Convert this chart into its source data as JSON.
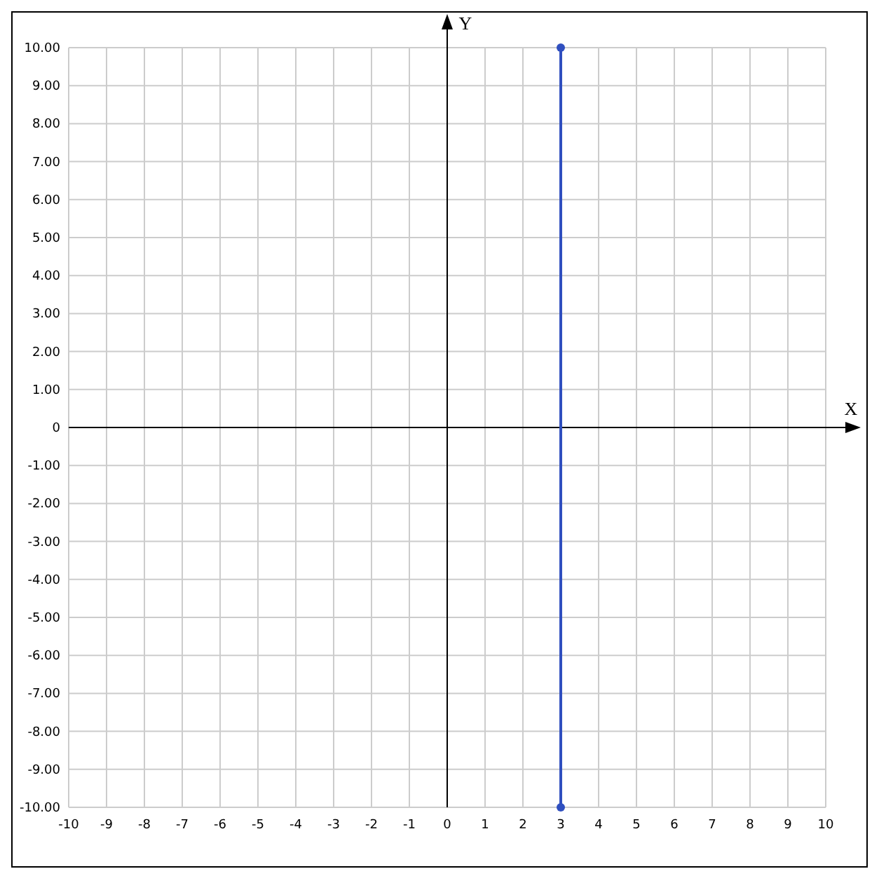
{
  "chart_data": {
    "type": "line",
    "xlabel": "X",
    "ylabel": "Y",
    "xlim": [
      -10,
      10
    ],
    "ylim": [
      -10,
      10
    ],
    "xticks": [
      -10,
      -9,
      -8,
      -7,
      -6,
      -5,
      -4,
      -3,
      -2,
      -1,
      0,
      1,
      2,
      3,
      4,
      5,
      6,
      7,
      8,
      9,
      10
    ],
    "yticks": [
      {
        "value": 10,
        "label": "10.00"
      },
      {
        "value": 9,
        "label": "9.00"
      },
      {
        "value": 8,
        "label": "8.00"
      },
      {
        "value": 7,
        "label": "7.00"
      },
      {
        "value": 6,
        "label": "6.00"
      },
      {
        "value": 5,
        "label": "5.00"
      },
      {
        "value": 4,
        "label": "4.00"
      },
      {
        "value": 3,
        "label": "3.00"
      },
      {
        "value": 2,
        "label": "2.00"
      },
      {
        "value": 1,
        "label": "1.00"
      },
      0,
      {
        "value": -1,
        "label": "-1.00"
      },
      {
        "value": -2,
        "label": "-2.00"
      },
      {
        "value": -3,
        "label": "-3.00"
      },
      {
        "value": -4,
        "label": "-4.00"
      },
      {
        "value": -5,
        "label": "-5.00"
      },
      {
        "value": -6,
        "label": "-6.00"
      },
      {
        "value": -7,
        "label": "-7.00"
      },
      {
        "value": -8,
        "label": "-8.00"
      },
      {
        "value": -9,
        "label": "-9.00"
      },
      {
        "value": -10,
        "label": "-10.00"
      }
    ],
    "grid": true,
    "marker": "circle",
    "line_style": "solid",
    "series": [
      {
        "color": "#2f4fbf",
        "x": [
          3,
          3
        ],
        "values": [
          -10,
          10
        ]
      }
    ]
  }
}
